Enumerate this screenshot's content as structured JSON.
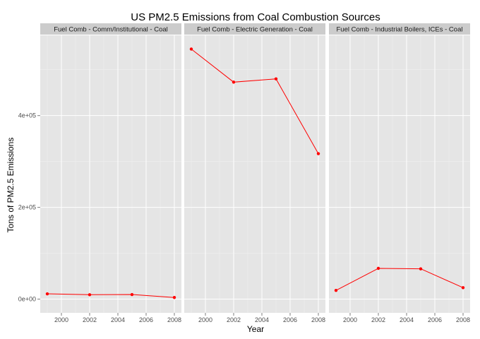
{
  "chart_data": {
    "type": "line",
    "title": "US PM2.5 Emissions from Coal Combustion Sources",
    "xlabel": "Year",
    "ylabel": "Tons of PM2.5 Emissions",
    "x": [
      1999,
      2002,
      2005,
      2008
    ],
    "xlim": [
      1998.5,
      2008.5
    ],
    "ylim": [
      -30000,
      575000
    ],
    "x_ticks": [
      2000,
      2002,
      2004,
      2006,
      2008
    ],
    "x_tick_labels": [
      "2000",
      "2002",
      "2004",
      "2006",
      "2008"
    ],
    "y_ticks": [
      0,
      200000,
      400000
    ],
    "y_tick_labels": [
      "0e+00",
      "2e+05",
      "4e+05"
    ],
    "grid": true,
    "panels": [
      {
        "label": "Fuel Comb - Comm/Institutional - Coal",
        "values": [
          11500,
          9500,
          10000,
          3500
        ]
      },
      {
        "label": "Fuel Comb - Electric Generation - Coal",
        "values": [
          545000,
          473000,
          480000,
          317000
        ]
      },
      {
        "label": "Fuel Comb - Industrial Boilers, ICEs - Coal",
        "values": [
          19000,
          67000,
          66000,
          25000
        ]
      }
    ],
    "line_color": "#ff0000",
    "panel_background": "#e5e5e5",
    "strip_background": "#cccccc",
    "grid_color": "#ffffff"
  }
}
